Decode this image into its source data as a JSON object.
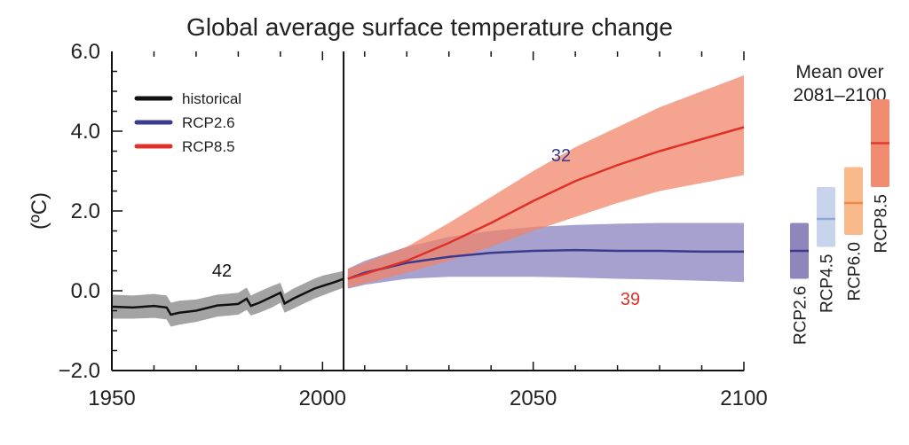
{
  "chart_data": {
    "type": "line",
    "title": "Global average surface temperature change",
    "ylabel": "(ºC)",
    "xlabel": "",
    "xlim": [
      1950,
      2100
    ],
    "ylim": [
      -2.0,
      6.0
    ],
    "xticks": [
      "1950",
      "2000",
      "2050",
      "2100"
    ],
    "yticks": [
      "−2.0",
      "0.0",
      "2.0",
      "4.0",
      "6.0"
    ],
    "divider_year": 2005,
    "grid": false,
    "legend_placement": "top-left",
    "series": [
      {
        "name": "historical",
        "color": "#111111",
        "band_color": "#a3a3a3",
        "model_count_label": "42",
        "x": [
          1950,
          1955,
          1960,
          1963,
          1964,
          1966,
          1970,
          1975,
          1980,
          1982,
          1983,
          1985,
          1988,
          1990,
          1991,
          1993,
          1995,
          1998,
          2000,
          2003,
          2005
        ],
        "y": [
          -0.4,
          -0.42,
          -0.38,
          -0.42,
          -0.6,
          -0.55,
          -0.5,
          -0.37,
          -0.33,
          -0.2,
          -0.38,
          -0.3,
          -0.15,
          -0.05,
          -0.32,
          -0.2,
          -0.1,
          0.05,
          0.12,
          0.22,
          0.3
        ],
        "lower": [
          -0.7,
          -0.7,
          -0.68,
          -0.72,
          -0.9,
          -0.85,
          -0.78,
          -0.65,
          -0.6,
          -0.48,
          -0.62,
          -0.55,
          -0.42,
          -0.3,
          -0.55,
          -0.45,
          -0.35,
          -0.2,
          -0.12,
          0.0,
          0.08
        ],
        "upper": [
          -0.1,
          -0.12,
          -0.08,
          -0.12,
          -0.3,
          -0.25,
          -0.22,
          -0.1,
          -0.05,
          0.08,
          -0.12,
          -0.02,
          0.12,
          0.2,
          -0.08,
          0.05,
          0.15,
          0.3,
          0.38,
          0.45,
          0.5
        ]
      },
      {
        "name": "RCP2.6",
        "color": "#3b3a8c",
        "band_color": "#8a82c0",
        "model_count_label": "32",
        "x": [
          2006,
          2010,
          2020,
          2030,
          2040,
          2050,
          2060,
          2070,
          2080,
          2090,
          2100
        ],
        "y": [
          0.3,
          0.45,
          0.7,
          0.85,
          0.95,
          1.0,
          1.02,
          1.0,
          1.0,
          0.98,
          0.98
        ],
        "lower": [
          0.05,
          0.15,
          0.3,
          0.35,
          0.35,
          0.35,
          0.33,
          0.3,
          0.28,
          0.25,
          0.22
        ],
        "upper": [
          0.55,
          0.75,
          1.1,
          1.35,
          1.5,
          1.6,
          1.65,
          1.68,
          1.7,
          1.7,
          1.7
        ]
      },
      {
        "name": "RCP8.5",
        "color": "#e0302a",
        "band_color": "#f0866a",
        "model_count_label": "39",
        "x": [
          2006,
          2010,
          2020,
          2030,
          2040,
          2050,
          2060,
          2070,
          2080,
          2090,
          2100
        ],
        "y": [
          0.3,
          0.42,
          0.75,
          1.2,
          1.7,
          2.25,
          2.75,
          3.15,
          3.5,
          3.8,
          4.1
        ],
        "lower": [
          0.08,
          0.18,
          0.45,
          0.75,
          1.1,
          1.5,
          1.85,
          2.2,
          2.5,
          2.7,
          2.9
        ],
        "upper": [
          0.55,
          0.7,
          1.1,
          1.7,
          2.35,
          3.0,
          3.6,
          4.1,
          4.6,
          5.0,
          5.4
        ]
      }
    ],
    "side_panel": {
      "title_line1": "Mean over",
      "title_line2": "2081–2100",
      "bars": [
        {
          "label": "RCP2.6",
          "mean": 1.0,
          "low": 0.3,
          "high": 1.7,
          "color": "#8f86bc",
          "line_color": "#3b3a8c"
        },
        {
          "label": "RCP4.5",
          "mean": 1.8,
          "low": 1.1,
          "high": 2.6,
          "color": "#c7d4eb",
          "line_color": "#8ea9d6"
        },
        {
          "label": "RCP6.0",
          "mean": 2.2,
          "low": 1.4,
          "high": 3.1,
          "color": "#f9b98b",
          "line_color": "#ee8a48"
        },
        {
          "label": "RCP8.5",
          "mean": 3.7,
          "low": 2.6,
          "high": 4.8,
          "color": "#f18c70",
          "line_color": "#e03a2a"
        }
      ]
    }
  }
}
